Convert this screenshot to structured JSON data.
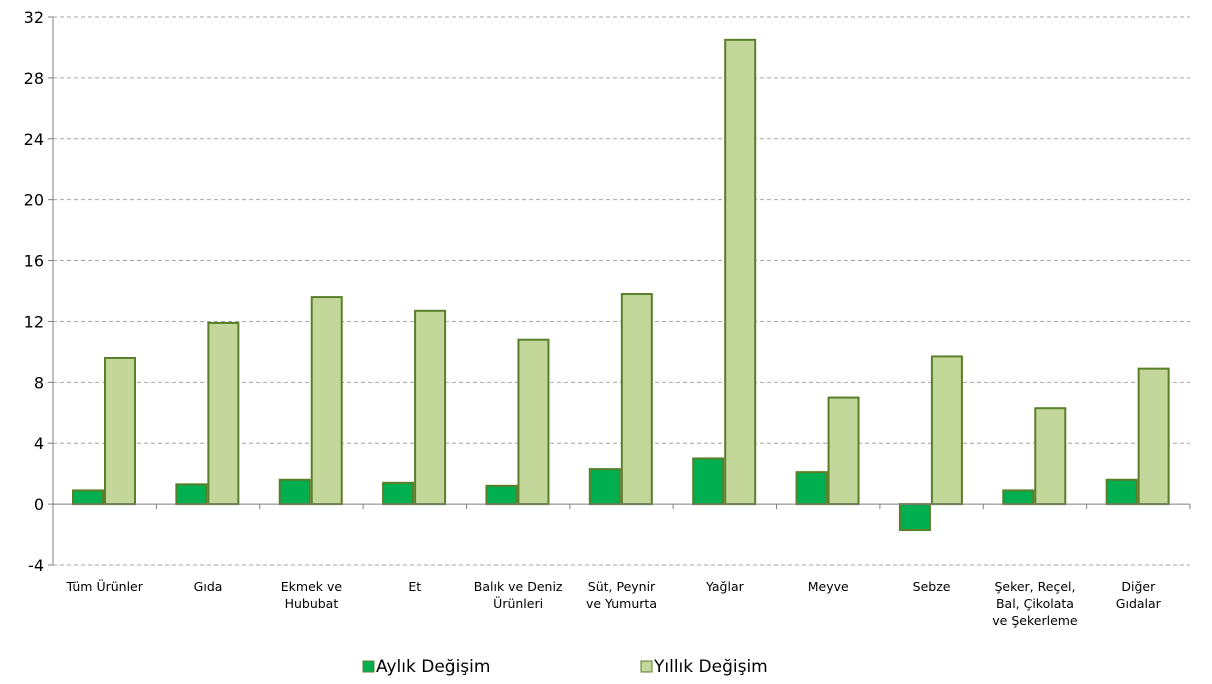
{
  "chart_data": {
    "type": "bar",
    "categories": [
      "Tüm Ürünler",
      "Gıda",
      "Ekmek ve Hububat",
      "Et",
      "Balık ve Deniz Ürünleri",
      "Süt, Peynir ve Yumurta",
      "Yağlar",
      "Meyve",
      "Sebze",
      "Şeker, Reçel, Bal, Çikolata ve Şekerleme",
      "Diğer Gıdalar"
    ],
    "category_lines": [
      [
        "Tüm Ürünler"
      ],
      [
        "Gıda"
      ],
      [
        "Ekmek ve",
        "Hububat"
      ],
      [
        "Et"
      ],
      [
        "Balık ve Deniz",
        "Ürünleri"
      ],
      [
        "Süt, Peynir",
        "ve Yumurta"
      ],
      [
        "Yağlar"
      ],
      [
        "Meyve"
      ],
      [
        "Sebze"
      ],
      [
        "Şeker, Reçel,",
        "Bal, Çikolata",
        "ve Şekerleme"
      ],
      [
        "Diğer",
        "Gıdalar"
      ]
    ],
    "series": [
      {
        "name": "Aylık Değişim",
        "color": "#00b050",
        "values": [
          0.9,
          1.3,
          1.6,
          1.4,
          1.2,
          2.3,
          3.0,
          2.1,
          -1.7,
          0.9,
          1.6
        ]
      },
      {
        "name": "Yıllık Değişim",
        "color": "#c4d79b",
        "values": [
          9.6,
          11.9,
          13.6,
          12.7,
          10.8,
          13.8,
          30.5,
          7.0,
          9.7,
          6.3,
          8.9
        ]
      }
    ],
    "bar_stroke": "#5a7f2b",
    "ylim": [
      -4,
      32
    ],
    "yticks": [
      -4,
      0,
      4,
      8,
      12,
      16,
      20,
      24,
      28,
      32
    ],
    "grid": true,
    "legend_position": "bottom-center",
    "title": "",
    "xlabel": "",
    "ylabel": ""
  }
}
